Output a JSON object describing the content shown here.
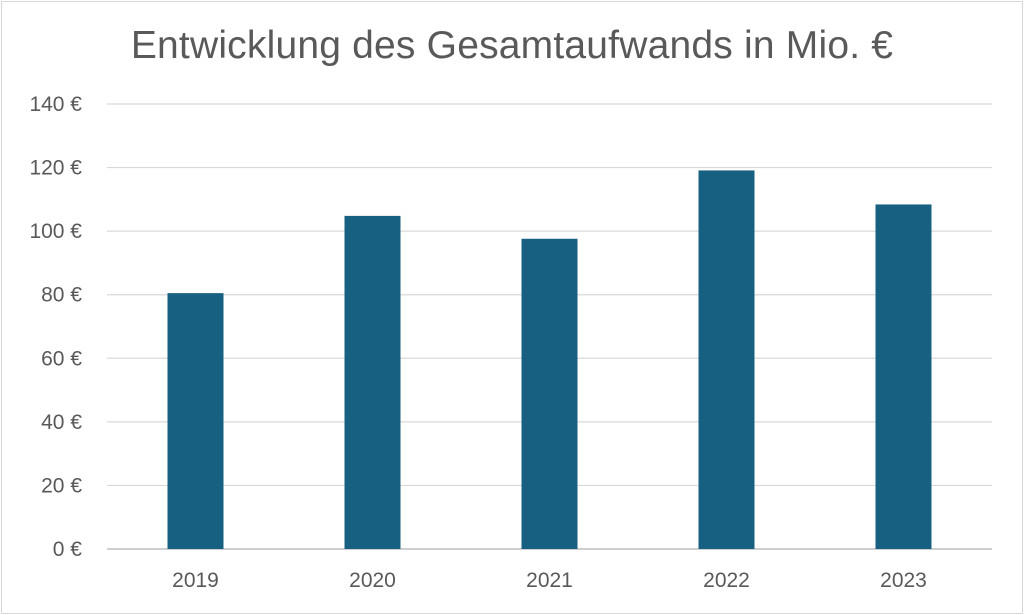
{
  "chart_data": {
    "type": "bar",
    "title": "Entwicklung des Gesamtaufwands in Mio. €",
    "xlabel": "",
    "ylabel": "",
    "categories": [
      "2019",
      "2020",
      "2021",
      "2022",
      "2023"
    ],
    "values": [
      80.5,
      104.8,
      97.6,
      119.1,
      108.4
    ],
    "ylim": [
      0,
      140
    ],
    "yticks": [
      0,
      20,
      40,
      60,
      80,
      100,
      120,
      140
    ],
    "ytick_labels": [
      "0 €",
      "20 €",
      "40 €",
      "60 €",
      "80 €",
      "100 €",
      "120 €",
      "140 €"
    ],
    "bar_color": "#176082",
    "grid": true,
    "legend": "none"
  }
}
